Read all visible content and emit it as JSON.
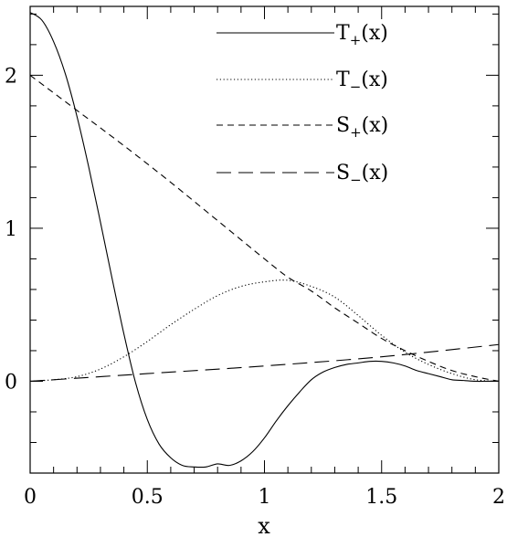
{
  "chart_data": {
    "type": "line",
    "xlabel": "x",
    "ylabel": "",
    "title": "",
    "xlim": [
      0,
      2
    ],
    "ylim": [
      -0.6,
      2.45
    ],
    "xticks": [
      {
        "value": 0,
        "label": "0"
      },
      {
        "value": 0.5,
        "label": "0.5"
      },
      {
        "value": 1,
        "label": "1"
      },
      {
        "value": 1.5,
        "label": "1.5"
      },
      {
        "value": 2,
        "label": "2"
      }
    ],
    "yticks": [
      {
        "value": 0,
        "label": "0"
      },
      {
        "value": 1,
        "label": "1"
      },
      {
        "value": 2,
        "label": "2"
      }
    ],
    "x_minor_step": 0.1,
    "y_minor_step": 0.2,
    "legend_position": "top-right",
    "series": [
      {
        "name": "T",
        "sub": "+",
        "suffix": "(x)",
        "dash": "solid",
        "x": [
          0,
          0.05,
          0.1,
          0.15,
          0.2,
          0.25,
          0.3,
          0.35,
          0.4,
          0.45,
          0.5,
          0.55,
          0.6,
          0.65,
          0.7,
          0.75,
          0.8,
          0.85,
          0.9,
          0.95,
          1.0,
          1.05,
          1.1,
          1.15,
          1.2,
          1.25,
          1.3,
          1.35,
          1.4,
          1.45,
          1.5,
          1.55,
          1.6,
          1.65,
          1.7,
          1.75,
          1.8,
          1.85,
          1.9,
          1.95,
          2.0
        ],
        "y": [
          2.41,
          2.36,
          2.22,
          2.01,
          1.73,
          1.4,
          1.04,
          0.67,
          0.31,
          -0.01,
          -0.25,
          -0.41,
          -0.5,
          -0.55,
          -0.56,
          -0.56,
          -0.54,
          -0.55,
          -0.52,
          -0.46,
          -0.37,
          -0.26,
          -0.16,
          -0.07,
          0.01,
          0.06,
          0.09,
          0.11,
          0.12,
          0.13,
          0.13,
          0.12,
          0.1,
          0.07,
          0.05,
          0.03,
          0.01,
          0.005,
          0.0,
          0.0,
          0.0
        ]
      },
      {
        "name": "T",
        "sub": "−",
        "suffix": "(x)",
        "dash": "dotted",
        "x": [
          0,
          0.1,
          0.2,
          0.3,
          0.4,
          0.5,
          0.6,
          0.7,
          0.8,
          0.9,
          1.0,
          1.1,
          1.2,
          1.3,
          1.4,
          1.5,
          1.6,
          1.7,
          1.8,
          1.9,
          2.0
        ],
        "y": [
          0.0,
          0.01,
          0.03,
          0.08,
          0.16,
          0.26,
          0.37,
          0.47,
          0.56,
          0.62,
          0.65,
          0.66,
          0.62,
          0.55,
          0.43,
          0.3,
          0.19,
          0.11,
          0.05,
          0.01,
          0.0
        ]
      },
      {
        "name": "S",
        "sub": "+",
        "suffix": "(x)",
        "dash": "short-dash",
        "x": [
          0,
          0.2,
          0.4,
          0.6,
          0.8,
          1.0,
          1.1,
          1.2,
          1.3,
          1.4,
          1.5,
          1.6,
          1.7,
          1.8,
          1.9,
          2.0
        ],
        "y": [
          2.0,
          1.77,
          1.54,
          1.3,
          1.05,
          0.8,
          0.68,
          0.59,
          0.48,
          0.38,
          0.28,
          0.2,
          0.13,
          0.07,
          0.03,
          0.0
        ]
      },
      {
        "name": "S",
        "sub": "−",
        "suffix": "(x)",
        "dash": "long-dash",
        "x": [
          0,
          0.5,
          1.0,
          1.5,
          2.0
        ],
        "y": [
          0.0,
          0.05,
          0.1,
          0.16,
          0.24
        ]
      }
    ]
  }
}
